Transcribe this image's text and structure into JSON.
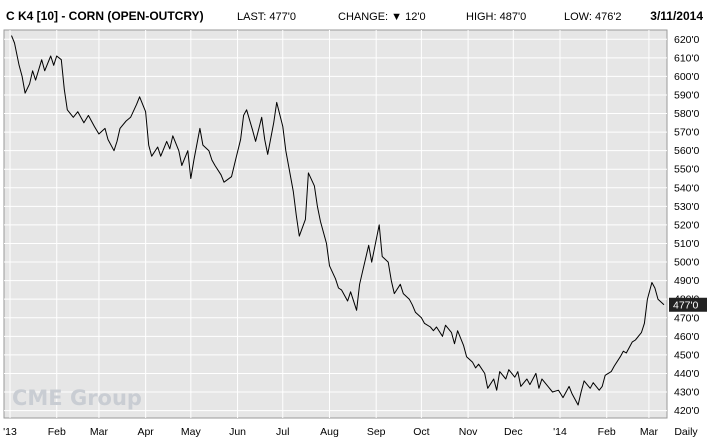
{
  "header": {
    "title": "C K4 [10] - CORN (OPEN-OUTCRY)",
    "last": "LAST: 477'0",
    "change": "CHANGE: ▼ 12'0",
    "high": "HIGH: 487'0",
    "low": "LOW: 476'2",
    "date": "3/11/2014"
  },
  "watermark": "CME Group",
  "colors": {
    "plot_bg": "#e6e6e6",
    "grid": "#ffffff",
    "line": "#000000",
    "last_box": "#222222"
  },
  "chart_data": {
    "type": "line",
    "title": "C K4 [10] - CORN (OPEN-OUTCRY)",
    "frequency_label": "Daily",
    "x_tick_labels": [
      "'13",
      "Feb",
      "Mar",
      "Apr",
      "May",
      "Jun",
      "Jul",
      "Aug",
      "Sep",
      "Oct",
      "Nov",
      "Dec",
      "'14",
      "Feb",
      "Mar"
    ],
    "y_tick_labels": [
      "420'0",
      "430'0",
      "440'0",
      "450'0",
      "460'0",
      "470'0",
      "480'0",
      "490'0",
      "500'0",
      "510'0",
      "520'0",
      "530'0",
      "540'0",
      "550'0",
      "560'0",
      "570'0",
      "580'0",
      "590'0",
      "600'0",
      "610'0",
      "620'0"
    ],
    "last_price_label": "477'0",
    "ylim": [
      416,
      625
    ],
    "grid": true,
    "series": [
      {
        "values": [
          [
            "2013-01-02",
            622
          ],
          [
            "2013-01-04",
            618
          ],
          [
            "2013-01-07",
            606
          ],
          [
            "2013-01-09",
            600
          ],
          [
            "2013-01-11",
            591
          ],
          [
            "2013-01-14",
            596
          ],
          [
            "2013-01-16",
            603
          ],
          [
            "2013-01-18",
            598
          ],
          [
            "2013-01-22",
            609
          ],
          [
            "2013-01-24",
            603
          ],
          [
            "2013-01-28",
            611
          ],
          [
            "2013-01-30",
            606
          ],
          [
            "2013-02-01",
            611
          ],
          [
            "2013-02-04",
            609
          ],
          [
            "2013-02-06",
            593
          ],
          [
            "2013-02-08",
            582
          ],
          [
            "2013-02-12",
            578
          ],
          [
            "2013-02-15",
            581
          ],
          [
            "2013-02-19",
            575
          ],
          [
            "2013-02-22",
            579
          ],
          [
            "2013-02-26",
            573
          ],
          [
            "2013-03-01",
            569
          ],
          [
            "2013-03-05",
            572
          ],
          [
            "2013-03-07",
            566
          ],
          [
            "2013-03-11",
            560
          ],
          [
            "2013-03-13",
            565
          ],
          [
            "2013-03-15",
            572
          ],
          [
            "2013-03-19",
            576
          ],
          [
            "2013-03-22",
            578
          ],
          [
            "2013-03-26",
            585
          ],
          [
            "2013-03-28",
            589
          ],
          [
            "2013-04-01",
            581
          ],
          [
            "2013-04-03",
            563
          ],
          [
            "2013-04-05",
            557
          ],
          [
            "2013-04-09",
            562
          ],
          [
            "2013-04-11",
            557
          ],
          [
            "2013-04-15",
            565
          ],
          [
            "2013-04-17",
            561
          ],
          [
            "2013-04-19",
            568
          ],
          [
            "2013-04-23",
            560
          ],
          [
            "2013-04-25",
            552
          ],
          [
            "2013-04-29",
            560
          ],
          [
            "2013-05-01",
            545
          ],
          [
            "2013-05-03",
            555
          ],
          [
            "2013-05-07",
            572
          ],
          [
            "2013-05-09",
            563
          ],
          [
            "2013-05-13",
            560
          ],
          [
            "2013-05-15",
            555
          ],
          [
            "2013-05-17",
            552
          ],
          [
            "2013-05-21",
            547
          ],
          [
            "2013-05-23",
            543
          ],
          [
            "2013-05-28",
            546
          ],
          [
            "2013-05-31",
            556
          ],
          [
            "2013-06-03",
            566
          ],
          [
            "2013-06-05",
            579
          ],
          [
            "2013-06-07",
            582
          ],
          [
            "2013-06-11",
            571
          ],
          [
            "2013-06-13",
            565
          ],
          [
            "2013-06-17",
            578
          ],
          [
            "2013-06-19",
            566
          ],
          [
            "2013-06-21",
            558
          ],
          [
            "2013-06-25",
            575
          ],
          [
            "2013-06-27",
            586
          ],
          [
            "2013-07-01",
            573
          ],
          [
            "2013-07-03",
            560
          ],
          [
            "2013-07-08",
            538
          ],
          [
            "2013-07-10",
            525
          ],
          [
            "2013-07-12",
            514
          ],
          [
            "2013-07-16",
            523
          ],
          [
            "2013-07-18",
            548
          ],
          [
            "2013-07-22",
            541
          ],
          [
            "2013-07-24",
            530
          ],
          [
            "2013-07-26",
            522
          ],
          [
            "2013-07-30",
            510
          ],
          [
            "2013-08-01",
            498
          ],
          [
            "2013-08-05",
            491
          ],
          [
            "2013-08-07",
            486
          ],
          [
            "2013-08-09",
            485
          ],
          [
            "2013-08-13",
            479
          ],
          [
            "2013-08-15",
            484
          ],
          [
            "2013-08-19",
            474
          ],
          [
            "2013-08-21",
            488
          ],
          [
            "2013-08-23",
            495
          ],
          [
            "2013-08-27",
            509
          ],
          [
            "2013-08-29",
            500
          ],
          [
            "2013-09-03",
            520
          ],
          [
            "2013-09-05",
            503
          ],
          [
            "2013-09-09",
            500
          ],
          [
            "2013-09-11",
            490
          ],
          [
            "2013-09-13",
            483
          ],
          [
            "2013-09-17",
            488
          ],
          [
            "2013-09-19",
            483
          ],
          [
            "2013-09-23",
            480
          ],
          [
            "2013-09-25",
            477
          ],
          [
            "2013-09-27",
            473
          ],
          [
            "2013-10-01",
            470
          ],
          [
            "2013-10-03",
            467
          ],
          [
            "2013-10-07",
            465
          ],
          [
            "2013-10-09",
            463
          ],
          [
            "2013-10-11",
            465
          ],
          [
            "2013-10-15",
            460
          ],
          [
            "2013-10-17",
            466
          ],
          [
            "2013-10-21",
            462
          ],
          [
            "2013-10-23",
            456
          ],
          [
            "2013-10-25",
            463
          ],
          [
            "2013-10-29",
            455
          ],
          [
            "2013-10-31",
            449
          ],
          [
            "2013-11-04",
            446
          ],
          [
            "2013-11-06",
            443
          ],
          [
            "2013-11-08",
            445
          ],
          [
            "2013-11-12",
            440
          ],
          [
            "2013-11-14",
            432
          ],
          [
            "2013-11-18",
            437
          ],
          [
            "2013-11-20",
            431
          ],
          [
            "2013-11-22",
            441
          ],
          [
            "2013-11-26",
            437
          ],
          [
            "2013-11-28",
            442
          ],
          [
            "2013-12-02",
            438
          ],
          [
            "2013-12-04",
            441
          ],
          [
            "2013-12-06",
            433
          ],
          [
            "2013-12-10",
            437
          ],
          [
            "2013-12-12",
            434
          ],
          [
            "2013-12-16",
            440
          ],
          [
            "2013-12-18",
            432
          ],
          [
            "2013-12-20",
            437
          ],
          [
            "2013-12-24",
            433
          ],
          [
            "2013-12-27",
            430
          ],
          [
            "2013-12-31",
            431
          ],
          [
            "2014-01-03",
            427
          ],
          [
            "2014-01-07",
            433
          ],
          [
            "2014-01-09",
            429
          ],
          [
            "2014-01-13",
            423
          ],
          [
            "2014-01-15",
            430
          ],
          [
            "2014-01-17",
            436
          ],
          [
            "2014-01-21",
            432
          ],
          [
            "2014-01-23",
            435
          ],
          [
            "2014-01-27",
            431
          ],
          [
            "2014-01-29",
            433
          ],
          [
            "2014-01-31",
            439
          ],
          [
            "2014-02-04",
            441
          ],
          [
            "2014-02-06",
            444
          ],
          [
            "2014-02-10",
            449
          ],
          [
            "2014-02-12",
            452
          ],
          [
            "2014-02-14",
            451
          ],
          [
            "2014-02-18",
            457
          ],
          [
            "2014-02-20",
            458
          ],
          [
            "2014-02-24",
            462
          ],
          [
            "2014-02-26",
            467
          ],
          [
            "2014-02-28",
            480
          ],
          [
            "2014-03-03",
            489
          ],
          [
            "2014-03-05",
            486
          ],
          [
            "2014-03-07",
            480
          ],
          [
            "2014-03-11",
            477
          ]
        ]
      }
    ]
  }
}
